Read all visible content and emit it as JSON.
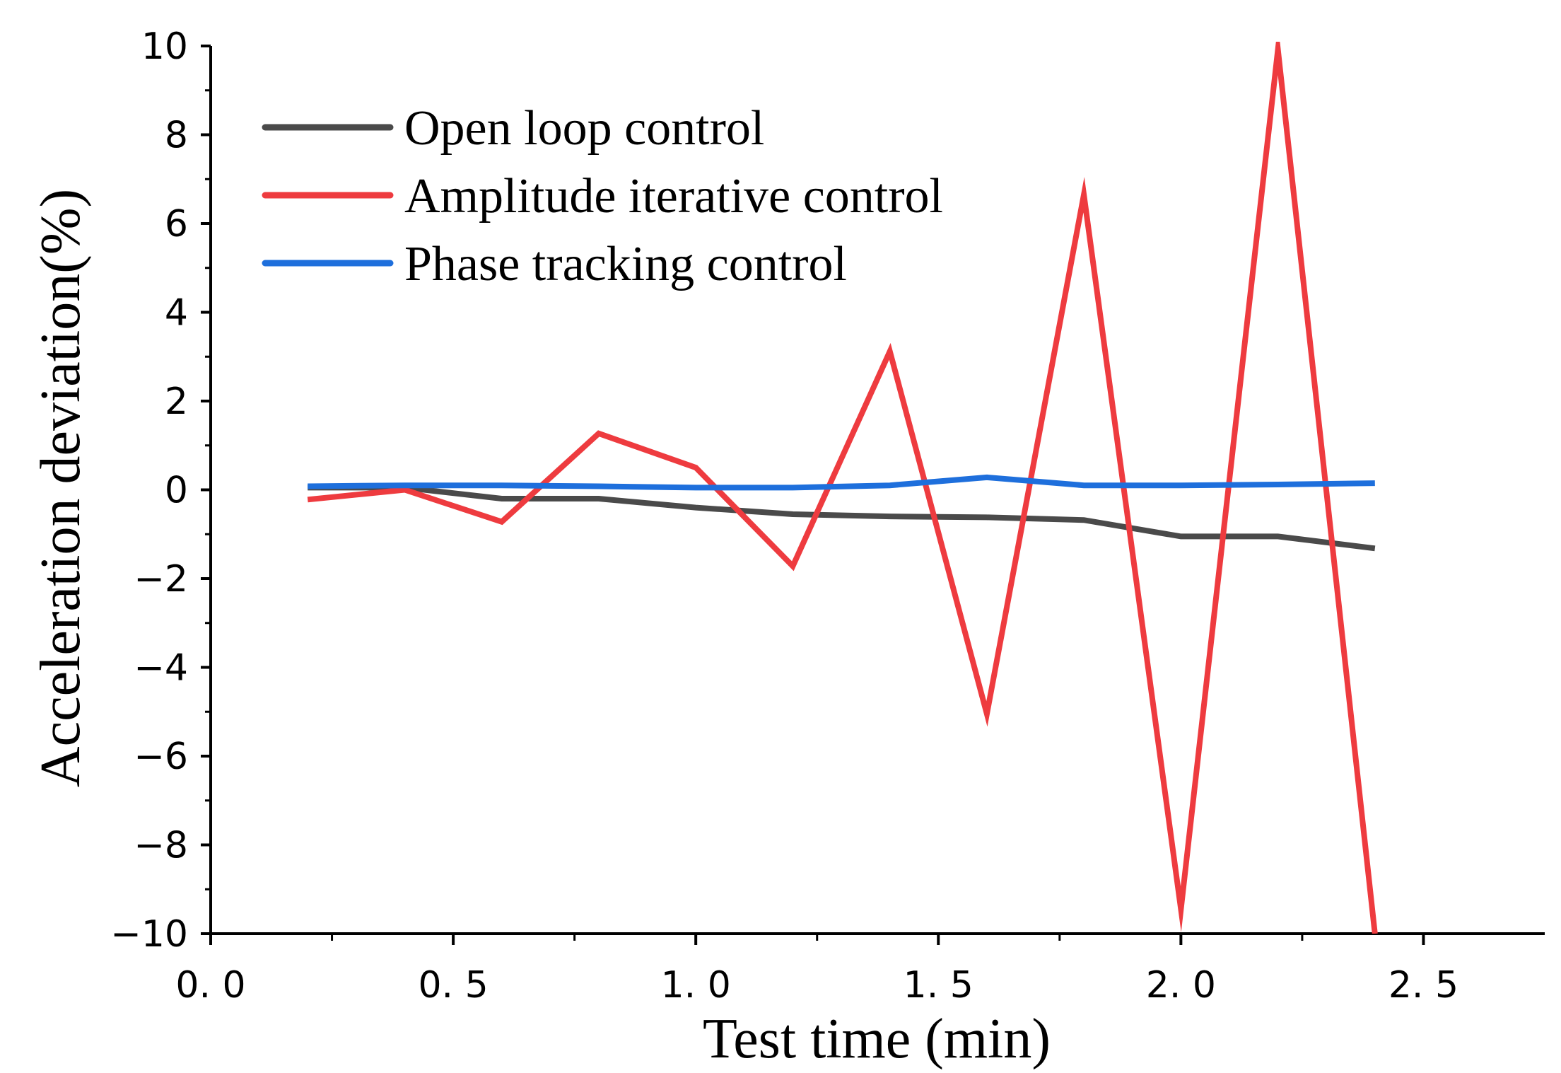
{
  "chart_data": {
    "type": "line",
    "title": "",
    "xlabel": "Test time (min)",
    "ylabel": "Acceleration deviation(%)",
    "xlim": [
      0.0,
      2.75
    ],
    "ylim": [
      -10,
      10
    ],
    "x_ticks": [
      0.0,
      0.5,
      1.0,
      1.5,
      2.0,
      2.5
    ],
    "x_tick_labels": [
      "0. 0",
      "0. 5",
      "1. 0",
      "1. 5",
      "2. 0",
      "2. 5"
    ],
    "y_ticks": [
      -10,
      -8,
      -6,
      -4,
      -2,
      0,
      2,
      4,
      6,
      8,
      10
    ],
    "y_tick_labels": [
      "−10",
      "−8",
      "−6",
      "−4",
      "−2",
      "0",
      "2",
      "4",
      "6",
      "8",
      "10"
    ],
    "grid": false,
    "legend_position": "top-left",
    "x": [
      0.2,
      0.4,
      0.6,
      0.8,
      1.0,
      1.2,
      1.4,
      1.6,
      1.8,
      2.0,
      2.2,
      2.4
    ],
    "series": [
      {
        "name": "Open loop control",
        "color": "#4a4a4a",
        "values": [
          0.05,
          0.05,
          -0.2,
          -0.2,
          -0.4,
          -0.55,
          -0.6,
          -0.62,
          -0.68,
          -1.05,
          -1.05,
          -1.32
        ]
      },
      {
        "name": "Amplitude iterative control",
        "color": "#ee3b3f",
        "values": [
          -0.22,
          0.0,
          -0.72,
          1.27,
          0.5,
          -1.72,
          3.12,
          -5.05,
          6.65,
          -9.45,
          9.92,
          -10.0
        ]
      },
      {
        "name": "Phase tracking control",
        "color": "#1e6fdc",
        "values": [
          0.08,
          0.1,
          0.1,
          0.08,
          0.05,
          0.05,
          0.1,
          0.28,
          0.1,
          0.1,
          0.12,
          0.15
        ]
      }
    ]
  }
}
